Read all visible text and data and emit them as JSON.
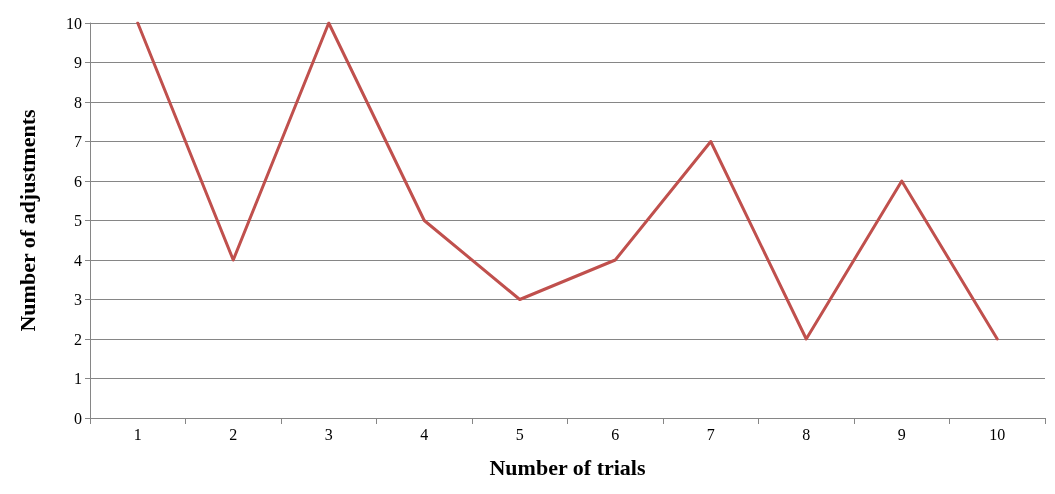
{
  "chart_data": {
    "type": "line",
    "xlabel": "Number of trials",
    "ylabel": "Number of adjustments",
    "categories": [
      "1",
      "2",
      "3",
      "4",
      "5",
      "6",
      "7",
      "8",
      "9",
      "10"
    ],
    "series": [
      {
        "color": "#c0504d",
        "values": [
          10,
          4,
          10,
          5,
          3,
          4,
          7,
          2,
          6,
          2
        ]
      }
    ],
    "ylim": [
      0,
      10
    ],
    "yticks": [
      0,
      1,
      2,
      3,
      4,
      5,
      6,
      7,
      8,
      9,
      10
    ],
    "grid": "y",
    "marker": "none",
    "line_style": "solid"
  }
}
